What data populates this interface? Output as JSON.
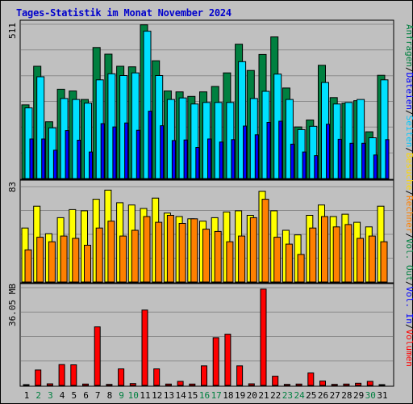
{
  "title": "Tages-Statistik im Monat November 2024",
  "chart_data": [
    {
      "type": "bar",
      "panel": "requests-files-pages",
      "ymax_label": "511",
      "ylim": [
        0,
        511
      ],
      "categories": [
        "1",
        "2",
        "3",
        "4",
        "5",
        "6",
        "7",
        "8",
        "9",
        "10",
        "11",
        "12",
        "13",
        "14",
        "15",
        "16",
        "17",
        "18",
        "19",
        "20",
        "21",
        "22",
        "23",
        "24",
        "25",
        "26",
        "27",
        "28",
        "29",
        "30",
        "31"
      ],
      "weekend_days": [
        "2",
        "3",
        "9",
        "10",
        "16",
        "17",
        "23",
        "24",
        "30"
      ],
      "series": [
        {
          "name": "Anfragen",
          "color": "#008040",
          "values": [
            244,
            372,
            188,
            296,
            290,
            262,
            434,
            412,
            372,
            370,
            509,
            390,
            290,
            287,
            272,
            287,
            305,
            350,
            445,
            358,
            411,
            469,
            300,
            171,
            194,
            375,
            268,
            250,
            258,
            155,
            342
          ]
        },
        {
          "name": "Dateien",
          "color": "#00e0ff",
          "values": [
            234,
            337,
            168,
            265,
            262,
            250,
            327,
            347,
            341,
            350,
            488,
            341,
            262,
            267,
            247,
            252,
            252,
            252,
            387,
            265,
            289,
            346,
            262,
            162,
            173,
            318,
            247,
            252,
            262,
            135,
            327
          ]
        },
        {
          "name": "Seiten",
          "color": "#0000ff",
          "values": [
            131,
            131,
            94,
            159,
            127,
            88,
            182,
            171,
            184,
            160,
            223,
            175,
            126,
            128,
            103,
            131,
            121,
            129,
            174,
            145,
            186,
            190,
            114,
            88,
            76,
            180,
            130,
            117,
            117,
            78,
            129
          ]
        }
      ],
      "right_labels": [
        "Anfragen",
        "Dateien",
        "Seiten",
        "Besuche",
        "Rechner",
        "Vol. Out",
        "Vol. In",
        "Volumen"
      ],
      "right_colors": [
        "#008040",
        "#0000ff",
        "#00c8ff",
        "#ffd700",
        "#ff8000",
        "#008040",
        "#0000ff",
        "#ff0000"
      ]
    },
    {
      "type": "bar",
      "panel": "visits-hosts",
      "ymax_label": "83",
      "ylim": [
        0,
        83
      ],
      "series": [
        {
          "name": "Besuche",
          "color": "#ffff00",
          "values": [
            47,
            66,
            42,
            56,
            63,
            62,
            72,
            80,
            69,
            67,
            64,
            73,
            60,
            57,
            55,
            53,
            56,
            61,
            62,
            58,
            79,
            62,
            45,
            41,
            58,
            67,
            57,
            59,
            52,
            48,
            66
          ]
        },
        {
          "name": "Rechner",
          "color": "#ff8000",
          "values": [
            28,
            39,
            35,
            40,
            38,
            32,
            47,
            53,
            40,
            45,
            57,
            52,
            58,
            51,
            55,
            46,
            44,
            35,
            40,
            56,
            72,
            39,
            33,
            24,
            47,
            57,
            48,
            50,
            38,
            40,
            35
          ]
        }
      ]
    },
    {
      "type": "bar",
      "panel": "volume",
      "ymax_label": "36.05 MB",
      "ylim": [
        0,
        36.05
      ],
      "series": [
        {
          "name": "Volumen",
          "color": "#ff0000",
          "values": [
            0.3,
            5.7,
            0.6,
            7.7,
            7.6,
            0.5,
            21.6,
            0.4,
            6.1,
            0.7,
            27.8,
            6.1,
            0.5,
            1.5,
            0.5,
            7.2,
            17.6,
            18.9,
            7.2,
            0.6,
            35.5,
            3.4,
            0.4,
            0.5,
            4.6,
            1.6,
            0.4,
            0.5,
            0.8,
            1.5,
            0.3
          ]
        }
      ]
    }
  ]
}
